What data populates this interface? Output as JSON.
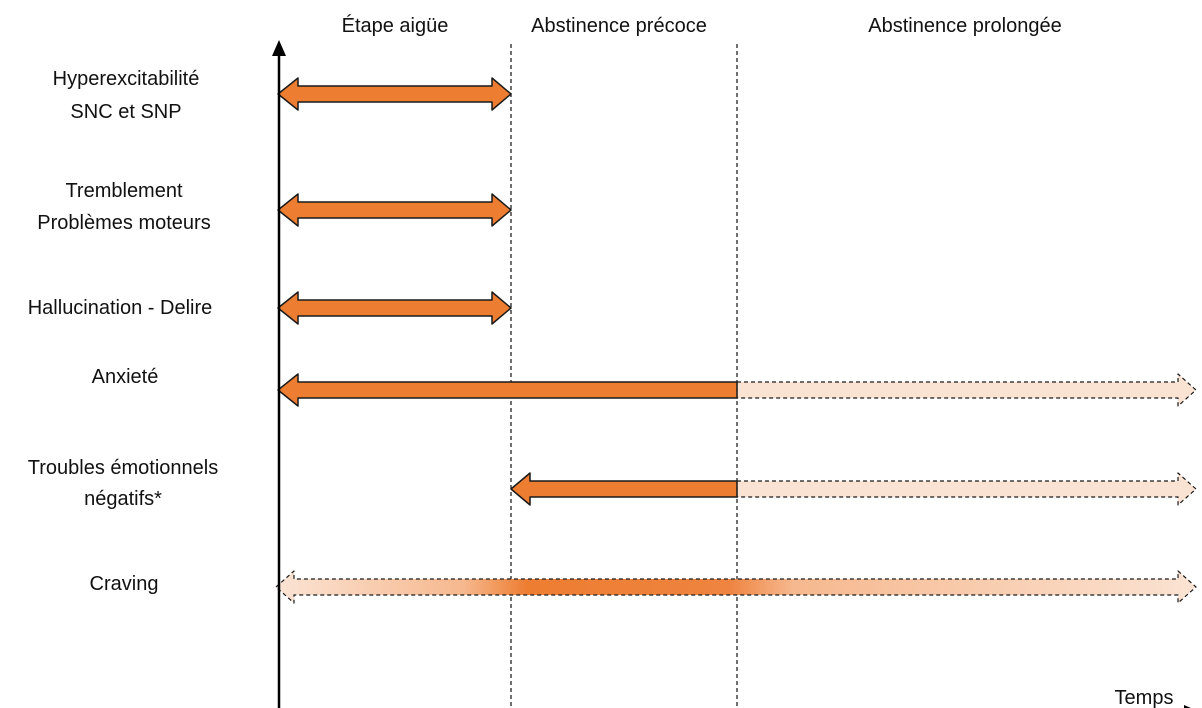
{
  "phases": [
    {
      "label": "Étape aigüe"
    },
    {
      "label": "Abstinence précoce"
    },
    {
      "label": "Abstinence prolongée"
    }
  ],
  "axis": {
    "x_label": "Temps"
  },
  "rows": [
    {
      "lines": [
        "Hyperexcitabilité",
        "SNC et SNP"
      ]
    },
    {
      "lines": [
        "Tremblement",
        "Problèmes moteurs"
      ]
    },
    {
      "lines": [
        "Hallucination - Delire"
      ]
    },
    {
      "lines": [
        "Anxieté"
      ]
    },
    {
      "lines": [
        "Troubles émotionnels",
        "négatifs*"
      ]
    },
    {
      "lines": [
        "Craving"
      ]
    }
  ],
  "colors": {
    "solid_fill": "#ED7D31",
    "faded_fill": "#FBE3D3",
    "outline": "#1a1a1a"
  }
}
